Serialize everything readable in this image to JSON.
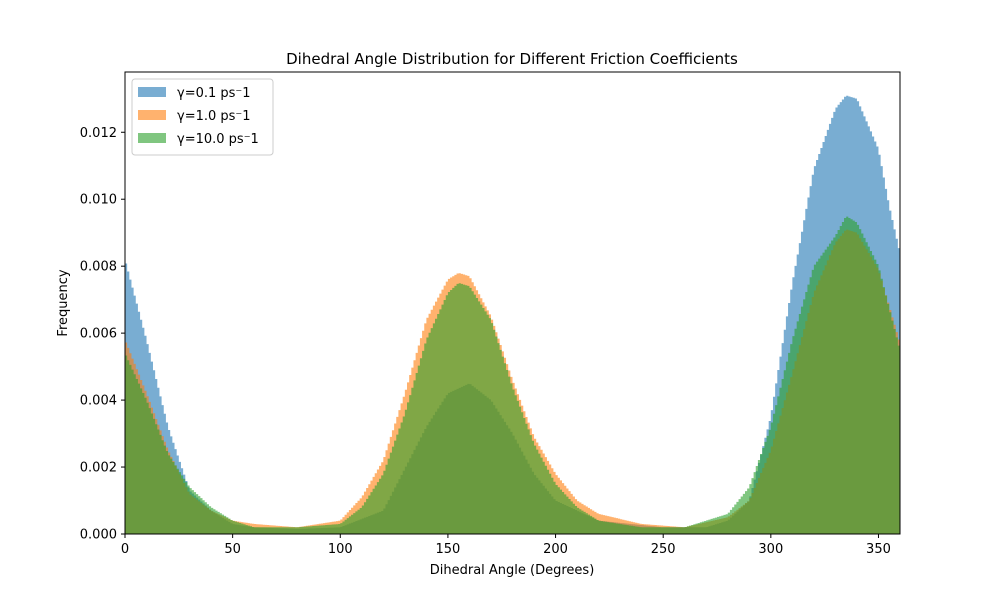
{
  "chart_data": {
    "type": "histogram",
    "title": "Dihedral Angle Distribution for Different Friction Coefficients",
    "xlabel": "Dihedral Angle (Degrees)",
    "ylabel": "Frequency",
    "xlim": [
      0,
      360
    ],
    "ylim": [
      0,
      0.0138
    ],
    "xticks": [
      0,
      50,
      100,
      150,
      200,
      250,
      300,
      350
    ],
    "xtick_labels": [
      "0",
      "50",
      "100",
      "150",
      "200",
      "250",
      "300",
      "350"
    ],
    "yticks": [
      0.0,
      0.002,
      0.004,
      0.006,
      0.008,
      0.01,
      0.012
    ],
    "ytick_labels": [
      "0.000",
      "0.002",
      "0.004",
      "0.006",
      "0.008",
      "0.010",
      "0.012"
    ],
    "grid": false,
    "legend_position": "top-left",
    "bin_width": 1,
    "series": [
      {
        "name": "γ=0.1 ps⁻1",
        "color": "#1f77b4",
        "opacity": 0.6,
        "points": [
          [
            0,
            0.0082
          ],
          [
            10,
            0.0058
          ],
          [
            20,
            0.0032
          ],
          [
            30,
            0.0013
          ],
          [
            40,
            0.0007
          ],
          [
            50,
            0.0003
          ],
          [
            60,
            0.0002
          ],
          [
            80,
            0.00015
          ],
          [
            100,
            0.0002
          ],
          [
            120,
            0.0007
          ],
          [
            140,
            0.0032
          ],
          [
            150,
            0.0042
          ],
          [
            160,
            0.0045
          ],
          [
            170,
            0.004
          ],
          [
            180,
            0.003
          ],
          [
            190,
            0.0018
          ],
          [
            200,
            0.001
          ],
          [
            220,
            0.0004
          ],
          [
            250,
            0.0002
          ],
          [
            270,
            0.0002
          ],
          [
            280,
            0.0004
          ],
          [
            290,
            0.001
          ],
          [
            300,
            0.0035
          ],
          [
            310,
            0.0075
          ],
          [
            320,
            0.0109
          ],
          [
            330,
            0.0127
          ],
          [
            335,
            0.0131
          ],
          [
            340,
            0.013
          ],
          [
            350,
            0.0115
          ],
          [
            355,
            0.0098
          ],
          [
            360,
            0.0084
          ]
        ]
      },
      {
        "name": "γ=1.0 ps⁻1",
        "color": "#ff7f0e",
        "opacity": 0.6,
        "points": [
          [
            0,
            0.0058
          ],
          [
            10,
            0.0042
          ],
          [
            20,
            0.0025
          ],
          [
            30,
            0.0012
          ],
          [
            40,
            0.0007
          ],
          [
            50,
            0.0004
          ],
          [
            60,
            0.0003
          ],
          [
            80,
            0.0002
          ],
          [
            100,
            0.0004
          ],
          [
            110,
            0.0011
          ],
          [
            120,
            0.0022
          ],
          [
            130,
            0.0042
          ],
          [
            140,
            0.0064
          ],
          [
            150,
            0.0076
          ],
          [
            155,
            0.0078
          ],
          [
            160,
            0.0077
          ],
          [
            170,
            0.0065
          ],
          [
            180,
            0.0046
          ],
          [
            190,
            0.0029
          ],
          [
            200,
            0.0018
          ],
          [
            210,
            0.001
          ],
          [
            220,
            0.0006
          ],
          [
            240,
            0.0003
          ],
          [
            260,
            0.0002
          ],
          [
            280,
            0.0005
          ],
          [
            290,
            0.001
          ],
          [
            300,
            0.0025
          ],
          [
            310,
            0.0048
          ],
          [
            320,
            0.0072
          ],
          [
            330,
            0.0087
          ],
          [
            335,
            0.0091
          ],
          [
            340,
            0.009
          ],
          [
            350,
            0.0079
          ],
          [
            360,
            0.0057
          ]
        ]
      },
      {
        "name": "γ=10.0 ps⁻1",
        "color": "#2ca02c",
        "opacity": 0.6,
        "points": [
          [
            0,
            0.0054
          ],
          [
            10,
            0.004
          ],
          [
            20,
            0.0024
          ],
          [
            30,
            0.0014
          ],
          [
            40,
            0.0008
          ],
          [
            50,
            0.0004
          ],
          [
            60,
            0.0002
          ],
          [
            80,
            0.0002
          ],
          [
            100,
            0.0003
          ],
          [
            110,
            0.0008
          ],
          [
            120,
            0.0018
          ],
          [
            130,
            0.0036
          ],
          [
            140,
            0.0058
          ],
          [
            150,
            0.0072
          ],
          [
            155,
            0.0075
          ],
          [
            160,
            0.0074
          ],
          [
            170,
            0.0064
          ],
          [
            180,
            0.0044
          ],
          [
            190,
            0.0027
          ],
          [
            200,
            0.0015
          ],
          [
            210,
            0.0008
          ],
          [
            220,
            0.0004
          ],
          [
            240,
            0.0002
          ],
          [
            260,
            0.0002
          ],
          [
            280,
            0.0006
          ],
          [
            290,
            0.0014
          ],
          [
            300,
            0.0032
          ],
          [
            310,
            0.0058
          ],
          [
            320,
            0.008
          ],
          [
            330,
            0.0089
          ],
          [
            335,
            0.0095
          ],
          [
            340,
            0.0093
          ],
          [
            350,
            0.008
          ],
          [
            360,
            0.0055
          ]
        ]
      }
    ]
  }
}
